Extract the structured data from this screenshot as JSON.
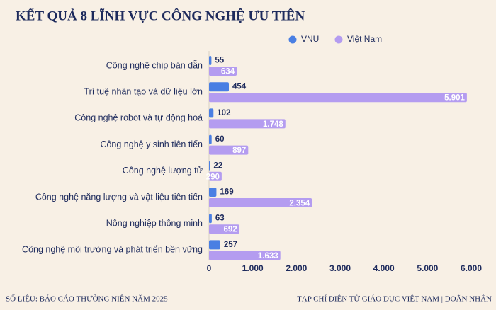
{
  "chart_data": {
    "type": "hbar",
    "title": "KẾT QUẢ 8 LĨNH VỰC CÔNG NGHỆ ƯU TIÊN",
    "source": "SỐ LIỆU: BÁO CÁO THƯỜNG NIÊN NĂM 2025",
    "credit": "TẠP CHÍ ĐIỆN TỬ GIÁO DỤC VIỆT NAM | DOÃN NHÂN",
    "categories": [
      "Công nghệ chip bán dẫn",
      "Trí tuệ nhân tạo và dữ liệu lớn",
      "Công nghệ robot và tự động hoá",
      "Công nghệ y sinh tiên tiến",
      "Công nghệ lượng tử",
      "Công nghệ năng lượng và vật liệu tiên tiến",
      "Nông nghiệp thông minh",
      "Công nghệ môi trường và phát triển bền vững"
    ],
    "series": [
      {
        "name": "VNU",
        "color": "#4a7fe3",
        "values": [
          55,
          454,
          102,
          60,
          22,
          169,
          63,
          257
        ],
        "value_labels": [
          "55",
          "454",
          "102",
          "60",
          "22",
          "169",
          "63",
          "257"
        ]
      },
      {
        "name": "Việt Nam",
        "color": "#b49cf0",
        "values": [
          634,
          5901,
          1748,
          897,
          290,
          2354,
          692,
          1633
        ],
        "value_labels": [
          "634",
          "5.901",
          "1.748",
          "897",
          "290",
          "2.354",
          "692",
          "1.633"
        ]
      }
    ],
    "xlim": [
      0,
      6000
    ],
    "xticks": [
      0,
      {
        "value": 1000,
        "label": "1.000"
      },
      {
        "value": 2000,
        "label": "2.000"
      },
      {
        "value": 3000,
        "label": "3.000"
      },
      {
        "value": 4000,
        "label": "4.000"
      },
      {
        "value": 5000,
        "label": "5.000"
      },
      {
        "value": 6000,
        "label": "6.000"
      }
    ],
    "legend": "top-right"
  }
}
